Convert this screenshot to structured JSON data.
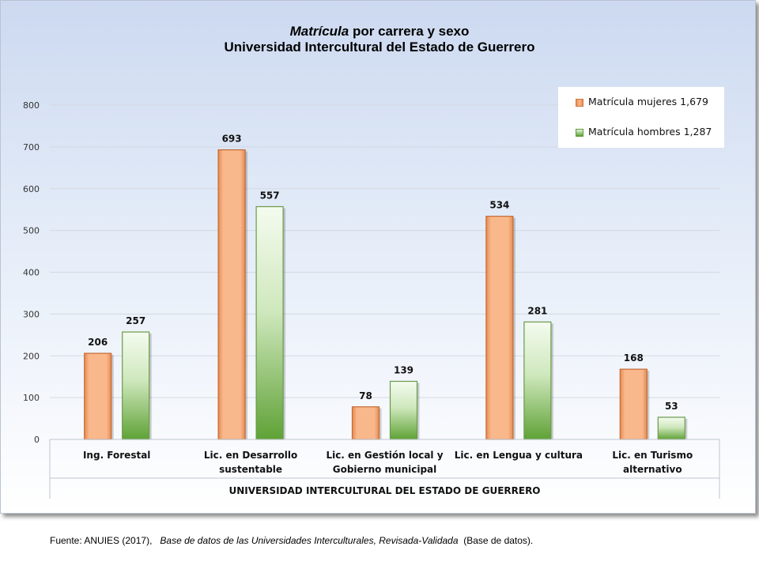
{
  "title": {
    "italic": "Matrícula",
    "rest": " por carrera y sexo",
    "line2": "Universidad Intercultural del Estado de Guerrero"
  },
  "source": {
    "prefix": "Fuente: ANUIES (2017),",
    "title": "Base de datos de las Universidades Interculturales, Revisada-Validada",
    "suffix": "(Base de datos)."
  },
  "colors": {
    "female": "#f4a774",
    "male": "#8fc46e",
    "grid": "#d4d9e1"
  },
  "chart_data": {
    "type": "bar",
    "group_label": "UNIVERSIDAD INTERCULTURAL DEL ESTADO DE GUERRERO",
    "categories": [
      [
        "Ing. Forestal"
      ],
      [
        "Lic. en Desarrollo",
        "sustentable"
      ],
      [
        "Lic. en Gestión local y",
        "Gobierno municipal"
      ],
      [
        "Lic. en Lengua y cultura"
      ],
      [
        "Lic. en Turismo",
        "alternativo"
      ]
    ],
    "series": [
      {
        "name": "Matrícula mujeres 1,679",
        "values": [
          206,
          693,
          78,
          534,
          168
        ]
      },
      {
        "name": "Matrícula hombres 1,287",
        "values": [
          257,
          557,
          139,
          281,
          53
        ]
      }
    ],
    "ylim": [
      0,
      800
    ],
    "yticks": [
      0,
      100,
      200,
      300,
      400,
      500,
      600,
      700,
      800
    ],
    "grid": true,
    "legend": "top-right"
  }
}
